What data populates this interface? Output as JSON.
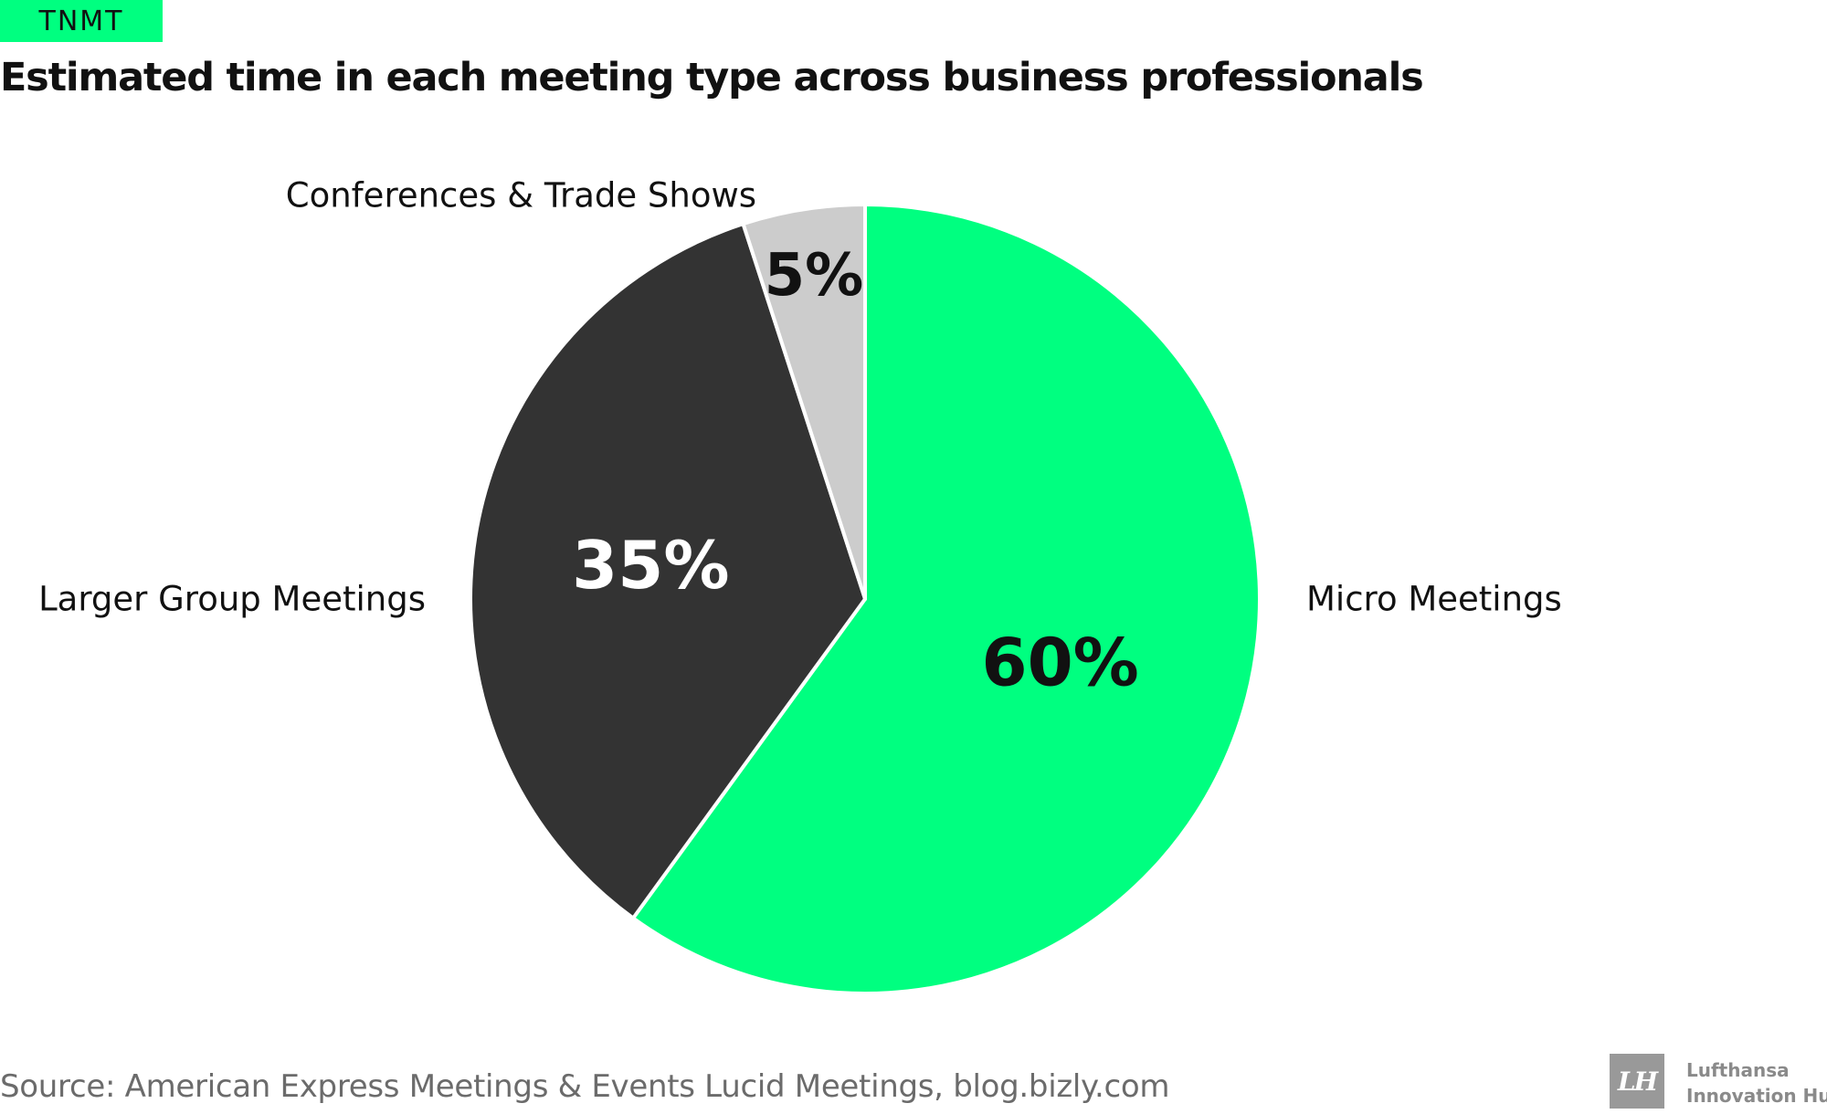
{
  "brand": {
    "tag": "TNMT"
  },
  "header": {
    "title": "Estimated time in each meeting type across business professionals"
  },
  "chart_data": {
    "type": "pie",
    "title": "Estimated time in each meeting type across business professionals",
    "slices": [
      {
        "label": "Micro Meetings",
        "value": 60,
        "value_label": "60%",
        "color": "#00ff80",
        "value_text_color": "#111111"
      },
      {
        "label": "Larger Group Meetings",
        "value": 35,
        "value_label": "35%",
        "color": "#333333",
        "value_text_color": "#ffffff"
      },
      {
        "label": "Conferences & Trade Shows",
        "value": 5,
        "value_label": "5%",
        "color": "#cccccc",
        "value_text_color": "#111111"
      }
    ],
    "start_angle_deg": 0,
    "direction": "clockwise"
  },
  "footer": {
    "source": "Source: American Express Meetings & Events Lucid Meetings, blog.bizly.com",
    "org_line1": "Lufthansa",
    "org_line2": "Innovation Hub"
  },
  "colors": {
    "accent": "#00ff80",
    "dark": "#333333",
    "light_gray": "#cccccc"
  }
}
